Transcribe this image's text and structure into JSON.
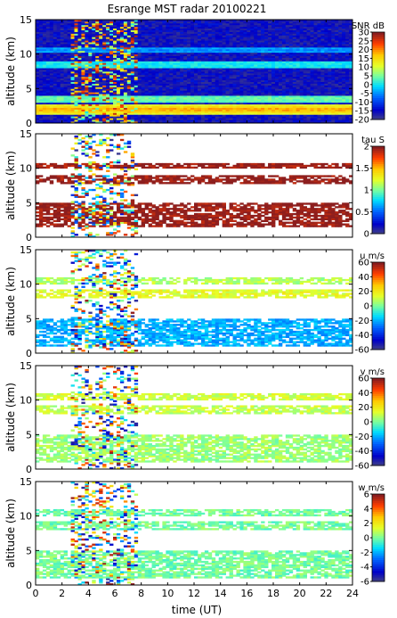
{
  "chart_data": [
    {
      "type": "heatmap",
      "title": "Esrange MST radar 20100221",
      "quantity": "SNR",
      "colorbar_label": "SNR dB",
      "ylabel": "altitude (km)",
      "ylim": [
        0,
        15
      ],
      "yticks": [
        0,
        5,
        10,
        15
      ],
      "xlim": [
        0,
        24
      ],
      "cbar_range": [
        -20,
        30
      ],
      "cbar_ticks": [
        -20,
        -15,
        -10,
        -5,
        0,
        5,
        10,
        15,
        20,
        25,
        30
      ],
      "background_value": -16,
      "layers": [
        {
          "center": 2.0,
          "width": 1.6,
          "value": 20
        },
        {
          "center": 3.5,
          "width": 1.2,
          "value": 5
        },
        {
          "center": 8.6,
          "width": 1.0,
          "value": 0
        },
        {
          "center": 10.6,
          "width": 0.8,
          "value": -6
        }
      ],
      "time_range": [
        0,
        24
      ]
    },
    {
      "type": "heatmap",
      "quantity": "tau",
      "colorbar_label": "tau S",
      "ylabel": "altitude (km)",
      "ylim": [
        0,
        15
      ],
      "yticks": [
        0,
        5,
        10,
        15
      ],
      "xlim": [
        0,
        24
      ],
      "cbar_range": [
        0,
        2
      ],
      "cbar_ticks": [
        0,
        0.5,
        1,
        1.5,
        2
      ],
      "layers": [
        {
          "center": 3.2,
          "width": 3.6,
          "value": 2
        },
        {
          "center": 8.3,
          "width": 1.2,
          "value": 2
        },
        {
          "center": 10.4,
          "width": 0.9,
          "value": 2
        }
      ],
      "time_range": [
        0,
        24
      ]
    },
    {
      "type": "heatmap",
      "quantity": "u",
      "colorbar_label": "u m/s",
      "ylabel": "altitude (km)",
      "ylim": [
        0,
        15
      ],
      "yticks": [
        0,
        5,
        10,
        15
      ],
      "xlim": [
        0,
        24
      ],
      "cbar_range": [
        -60,
        60
      ],
      "cbar_ticks": [
        -60,
        -40,
        -20,
        0,
        20,
        40,
        60
      ],
      "layers": [
        {
          "center": 3.0,
          "width": 4.0,
          "value": -20
        },
        {
          "center": 8.6,
          "width": 1.4,
          "value": 15
        },
        {
          "center": 10.5,
          "width": 1.0,
          "value": 8
        }
      ],
      "time_range": [
        0,
        24
      ]
    },
    {
      "type": "heatmap",
      "quantity": "v",
      "colorbar_label": "v m/s",
      "ylabel": "altitude (km)",
      "ylim": [
        0,
        15
      ],
      "yticks": [
        0,
        5,
        10,
        15
      ],
      "xlim": [
        0,
        24
      ],
      "cbar_range": [
        -60,
        60
      ],
      "cbar_ticks": [
        -60,
        -40,
        -20,
        0,
        20,
        40,
        60
      ],
      "layers": [
        {
          "center": 3.0,
          "width": 4.0,
          "value": 5
        },
        {
          "center": 8.6,
          "width": 1.4,
          "value": 10
        },
        {
          "center": 10.5,
          "width": 1.0,
          "value": 12
        }
      ],
      "time_range": [
        0,
        24
      ]
    },
    {
      "type": "heatmap",
      "quantity": "w",
      "colorbar_label": "w m/s",
      "ylabel": "altitude (km)",
      "ylim": [
        0,
        15
      ],
      "yticks": [
        0,
        5,
        10,
        15
      ],
      "xlim": [
        0,
        24
      ],
      "xlabel": "time (UT)",
      "xticks": [
        0,
        2,
        4,
        6,
        8,
        10,
        12,
        14,
        16,
        18,
        20,
        22,
        24
      ],
      "cbar_range": [
        -6,
        6
      ],
      "cbar_ticks": [
        -6,
        -4,
        -2,
        0,
        2,
        4,
        6
      ],
      "layers": [
        {
          "center": 3.0,
          "width": 4.0,
          "value": 0
        },
        {
          "center": 8.6,
          "width": 1.4,
          "value": 0
        },
        {
          "center": 10.5,
          "width": 1.0,
          "value": 0
        }
      ],
      "time_range": [
        0,
        24
      ]
    }
  ],
  "colors": {
    "frame": "#000000",
    "background": "#ffffff"
  }
}
